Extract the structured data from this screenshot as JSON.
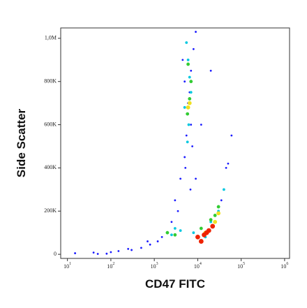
{
  "chart_data": {
    "type": "scatter",
    "x_label": "CD47 FITC",
    "y_label": "Side Scatter",
    "x_log": true,
    "xlim": [
      7,
      1300000
    ],
    "ylim": [
      -19000,
      1048000
    ],
    "xticks": [
      {
        "value": 10,
        "label": "10",
        "sup": "1"
      },
      {
        "value": 100,
        "label": "10",
        "sup": "2"
      },
      {
        "value": 1000,
        "label": "10",
        "sup": "3"
      },
      {
        "value": 10000,
        "label": "10",
        "sup": "4"
      },
      {
        "value": 100000,
        "label": "10",
        "sup": "5"
      },
      {
        "value": 1000000,
        "label": "10",
        "sup": "6"
      }
    ],
    "yticks": [
      0,
      {
        "value": 200000,
        "label": "200K"
      },
      {
        "value": 400000,
        "label": "400K"
      },
      {
        "value": 600000,
        "label": "600K"
      },
      {
        "value": 800000,
        "label": "800K"
      },
      {
        "value": 1000000,
        "label": "1,0M"
      }
    ],
    "series": [
      {
        "color": "#1a1aff",
        "x": [
          15,
          40,
          80,
          150,
          300,
          500,
          800,
          1200,
          2500,
          3000,
          4000,
          5000,
          5500,
          6000,
          6500,
          7000,
          8000,
          9000,
          4500,
          5000,
          6000,
          7000,
          7500,
          5200,
          6800,
          3500,
          9000,
          12000,
          20000,
          40000,
          45000,
          50000,
          35000,
          60000,
          1500,
          2000,
          700,
          250,
          100,
          50
        ],
        "y": [
          5000,
          8000,
          3000,
          15000,
          20000,
          30000,
          45000,
          60000,
          150000,
          250000,
          350000,
          450000,
          550000,
          650000,
          750000,
          850000,
          950000,
          1030000,
          900000,
          800000,
          700000,
          600000,
          500000,
          400000,
          300000,
          200000,
          350000,
          600000,
          850000,
          300000,
          400000,
          420000,
          250000,
          550000,
          80000,
          100000,
          60000,
          25000,
          10000,
          2000
        ]
      },
      {
        "color": "#00c8e0",
        "x": [
          5500,
          6000,
          6500,
          7000,
          5000,
          6200,
          5800,
          3000,
          20000,
          30000,
          40000,
          8000,
          15000,
          2500,
          4000
        ],
        "y": [
          980000,
          900000,
          820000,
          750000,
          680000,
          600000,
          520000,
          120000,
          150000,
          200000,
          300000,
          100000,
          80000,
          90000,
          110000
        ]
      },
      {
        "color": "#33cc33",
        "x": [
          6000,
          6500,
          5800,
          7000,
          2000,
          3000,
          12000,
          20000,
          30000,
          25000
        ],
        "y": [
          880000,
          720000,
          650000,
          800000,
          100000,
          90000,
          120000,
          160000,
          220000,
          180000
        ]
      },
      {
        "color": "#f0e020",
        "x": [
          6500,
          6000,
          15000,
          25000,
          30000,
          10000
        ],
        "y": [
          700000,
          680000,
          100000,
          150000,
          190000,
          80000
        ]
      },
      {
        "color": "#ee2200",
        "x": [
          10000,
          14000,
          18000,
          22000,
          12000,
          16000
        ],
        "y": [
          80000,
          90000,
          110000,
          130000,
          60000,
          100000
        ]
      }
    ]
  }
}
